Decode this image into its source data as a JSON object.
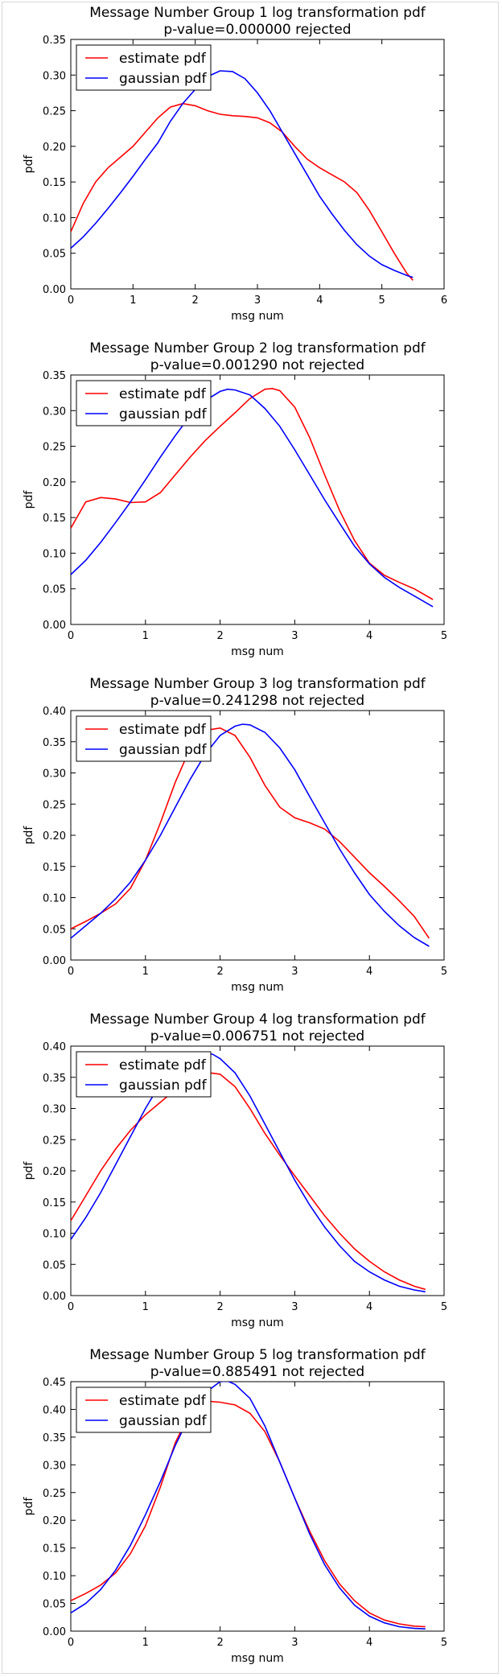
{
  "legend": {
    "estimate": "estimate pdf",
    "gaussian": "gaussian pdf"
  },
  "colors": {
    "estimate": "#ff0000",
    "gaussian": "#0000ff"
  },
  "chart_data": [
    {
      "type": "line",
      "title": "Message Number Group 1 log transformation pdf",
      "subtitle": "p-value=0.000000  rejected",
      "xlabel": "msg num",
      "ylabel": "pdf",
      "xlim": [
        0,
        6
      ],
      "ylim": [
        0,
        0.35
      ],
      "xticks": [
        "0",
        "1",
        "2",
        "3",
        "4",
        "5",
        "6"
      ],
      "yticks": [
        "0.00",
        "0.05",
        "0.10",
        "0.15",
        "0.20",
        "0.25",
        "0.30",
        "0.35"
      ],
      "grid": false,
      "legend_position": "top-left",
      "series": [
        {
          "name": "estimate pdf",
          "color": "#ff0000",
          "x": [
            0,
            0.2,
            0.4,
            0.6,
            0.8,
            1.0,
            1.2,
            1.4,
            1.6,
            1.8,
            2.0,
            2.2,
            2.4,
            2.6,
            2.8,
            3.0,
            3.2,
            3.4,
            3.6,
            3.8,
            4.0,
            4.2,
            4.4,
            4.6,
            4.8,
            5.0,
            5.2,
            5.4,
            5.5
          ],
          "y": [
            0.08,
            0.12,
            0.15,
            0.17,
            0.185,
            0.2,
            0.22,
            0.24,
            0.255,
            0.26,
            0.257,
            0.25,
            0.245,
            0.243,
            0.242,
            0.24,
            0.233,
            0.22,
            0.2,
            0.182,
            0.17,
            0.16,
            0.15,
            0.135,
            0.11,
            0.08,
            0.05,
            0.022,
            0.012
          ]
        },
        {
          "name": "gaussian pdf",
          "color": "#0000ff",
          "x": [
            0,
            0.2,
            0.4,
            0.6,
            0.8,
            1.0,
            1.2,
            1.4,
            1.6,
            1.8,
            2.0,
            2.2,
            2.4,
            2.6,
            2.8,
            3.0,
            3.2,
            3.4,
            3.6,
            3.8,
            4.0,
            4.2,
            4.4,
            4.6,
            4.8,
            5.0,
            5.2,
            5.4,
            5.5
          ],
          "y": [
            0.057,
            0.073,
            0.092,
            0.113,
            0.135,
            0.158,
            0.182,
            0.205,
            0.235,
            0.26,
            0.28,
            0.298,
            0.306,
            0.305,
            0.295,
            0.275,
            0.25,
            0.22,
            0.19,
            0.16,
            0.13,
            0.105,
            0.082,
            0.062,
            0.046,
            0.034,
            0.026,
            0.019,
            0.016
          ]
        }
      ]
    },
    {
      "type": "line",
      "title": "Message Number Group 2 log transformation pdf",
      "subtitle": "p-value=0.001290  not rejected",
      "xlabel": "msg num",
      "ylabel": "pdf",
      "xlim": [
        0,
        5
      ],
      "ylim": [
        0,
        0.35
      ],
      "xticks": [
        "0",
        "1",
        "2",
        "3",
        "4",
        "5"
      ],
      "yticks": [
        "0.00",
        "0.05",
        "0.10",
        "0.15",
        "0.20",
        "0.25",
        "0.30",
        "0.35"
      ],
      "grid": false,
      "legend_position": "top-left",
      "series": [
        {
          "name": "estimate pdf",
          "color": "#ff0000",
          "x": [
            0,
            0.2,
            0.4,
            0.6,
            0.8,
            1.0,
            1.2,
            1.4,
            1.6,
            1.8,
            2.0,
            2.2,
            2.4,
            2.6,
            2.7,
            2.8,
            3.0,
            3.2,
            3.4,
            3.6,
            3.8,
            4.0,
            4.2,
            4.4,
            4.6,
            4.85
          ],
          "y": [
            0.135,
            0.172,
            0.178,
            0.176,
            0.171,
            0.172,
            0.185,
            0.21,
            0.235,
            0.258,
            0.278,
            0.297,
            0.317,
            0.33,
            0.331,
            0.328,
            0.305,
            0.262,
            0.21,
            0.16,
            0.118,
            0.086,
            0.069,
            0.059,
            0.05,
            0.035
          ]
        },
        {
          "name": "gaussian pdf",
          "color": "#0000ff",
          "x": [
            0,
            0.2,
            0.4,
            0.6,
            0.8,
            1.0,
            1.2,
            1.4,
            1.6,
            1.8,
            2.0,
            2.1,
            2.2,
            2.4,
            2.6,
            2.8,
            3.0,
            3.2,
            3.4,
            3.6,
            3.8,
            4.0,
            4.2,
            4.4,
            4.6,
            4.85
          ],
          "y": [
            0.07,
            0.09,
            0.115,
            0.143,
            0.172,
            0.203,
            0.235,
            0.265,
            0.293,
            0.314,
            0.327,
            0.33,
            0.329,
            0.322,
            0.303,
            0.278,
            0.245,
            0.21,
            0.175,
            0.142,
            0.11,
            0.085,
            0.066,
            0.052,
            0.04,
            0.025
          ]
        }
      ]
    },
    {
      "type": "line",
      "title": "Message Number Group 3 log transformation pdf",
      "subtitle": "p-value=0.241298  not rejected",
      "xlabel": "msg num",
      "ylabel": "pdf",
      "xlim": [
        0,
        5
      ],
      "ylim": [
        0,
        0.4
      ],
      "xticks": [
        "0",
        "1",
        "2",
        "3",
        "4",
        "5"
      ],
      "yticks": [
        "0.00",
        "0.05",
        "0.10",
        "0.15",
        "0.20",
        "0.25",
        "0.30",
        "0.35",
        "0.40"
      ],
      "grid": false,
      "legend_position": "top-left",
      "series": [
        {
          "name": "estimate pdf",
          "color": "#ff0000",
          "x": [
            0,
            0.2,
            0.4,
            0.6,
            0.8,
            1.0,
            1.2,
            1.4,
            1.6,
            1.8,
            2.0,
            2.2,
            2.4,
            2.6,
            2.8,
            3.0,
            3.2,
            3.4,
            3.6,
            3.8,
            4.0,
            4.2,
            4.4,
            4.6,
            4.8
          ],
          "y": [
            0.05,
            0.062,
            0.075,
            0.09,
            0.115,
            0.16,
            0.22,
            0.285,
            0.34,
            0.368,
            0.372,
            0.36,
            0.325,
            0.28,
            0.245,
            0.228,
            0.22,
            0.21,
            0.19,
            0.165,
            0.14,
            0.118,
            0.095,
            0.07,
            0.035
          ]
        },
        {
          "name": "gaussian pdf",
          "color": "#0000ff",
          "x": [
            0,
            0.2,
            0.4,
            0.6,
            0.8,
            1.0,
            1.2,
            1.4,
            1.6,
            1.8,
            2.0,
            2.2,
            2.3,
            2.4,
            2.6,
            2.8,
            3.0,
            3.2,
            3.4,
            3.6,
            3.8,
            4.0,
            4.2,
            4.4,
            4.6,
            4.8
          ],
          "y": [
            0.035,
            0.055,
            0.075,
            0.098,
            0.125,
            0.16,
            0.2,
            0.245,
            0.29,
            0.33,
            0.36,
            0.375,
            0.378,
            0.377,
            0.365,
            0.34,
            0.305,
            0.262,
            0.22,
            0.178,
            0.14,
            0.105,
            0.078,
            0.055,
            0.036,
            0.022
          ]
        }
      ]
    },
    {
      "type": "line",
      "title": "Message Number Group 4 log transformation pdf",
      "subtitle": "p-value=0.006751  not rejected",
      "xlabel": "msg num",
      "ylabel": "pdf",
      "xlim": [
        0,
        5
      ],
      "ylim": [
        0,
        0.4
      ],
      "xticks": [
        "0",
        "1",
        "2",
        "3",
        "4",
        "5"
      ],
      "yticks": [
        "0.00",
        "0.05",
        "0.10",
        "0.15",
        "0.20",
        "0.25",
        "0.30",
        "0.35",
        "0.40"
      ],
      "grid": false,
      "legend_position": "top-left",
      "series": [
        {
          "name": "estimate pdf",
          "color": "#ff0000",
          "x": [
            0,
            0.2,
            0.4,
            0.6,
            0.8,
            1.0,
            1.2,
            1.4,
            1.6,
            1.8,
            2.0,
            2.2,
            2.4,
            2.6,
            2.8,
            3.0,
            3.2,
            3.4,
            3.6,
            3.8,
            4.0,
            4.2,
            4.4,
            4.6,
            4.75
          ],
          "y": [
            0.12,
            0.16,
            0.2,
            0.235,
            0.265,
            0.29,
            0.31,
            0.33,
            0.348,
            0.358,
            0.355,
            0.335,
            0.3,
            0.26,
            0.225,
            0.192,
            0.16,
            0.128,
            0.1,
            0.075,
            0.055,
            0.038,
            0.025,
            0.015,
            0.01
          ]
        },
        {
          "name": "gaussian pdf",
          "color": "#0000ff",
          "x": [
            0,
            0.2,
            0.4,
            0.6,
            0.8,
            1.0,
            1.2,
            1.4,
            1.6,
            1.8,
            1.9,
            2.0,
            2.2,
            2.4,
            2.6,
            2.8,
            3.0,
            3.2,
            3.4,
            3.6,
            3.8,
            4.0,
            4.2,
            4.4,
            4.6,
            4.75
          ],
          "y": [
            0.09,
            0.125,
            0.165,
            0.21,
            0.255,
            0.3,
            0.34,
            0.37,
            0.385,
            0.388,
            0.387,
            0.38,
            0.357,
            0.32,
            0.275,
            0.23,
            0.185,
            0.145,
            0.11,
            0.08,
            0.055,
            0.038,
            0.025,
            0.015,
            0.009,
            0.006
          ]
        }
      ]
    },
    {
      "type": "line",
      "title": "Message Number Group 5 log transformation pdf",
      "subtitle": "p-value=0.885491  not rejected",
      "xlabel": "msg num",
      "ylabel": "pdf",
      "xlim": [
        0,
        5
      ],
      "ylim": [
        0,
        0.45
      ],
      "xticks": [
        "0",
        "1",
        "2",
        "3",
        "4",
        "5"
      ],
      "yticks": [
        "0.00",
        "0.05",
        "0.10",
        "0.15",
        "0.20",
        "0.25",
        "0.30",
        "0.35",
        "0.40",
        "0.45"
      ],
      "grid": false,
      "legend_position": "top-left",
      "series": [
        {
          "name": "estimate pdf",
          "color": "#ff0000",
          "x": [
            0,
            0.2,
            0.4,
            0.6,
            0.8,
            1.0,
            1.2,
            1.4,
            1.6,
            1.8,
            2.0,
            2.2,
            2.4,
            2.6,
            2.8,
            3.0,
            3.2,
            3.4,
            3.6,
            3.8,
            4.0,
            4.2,
            4.4,
            4.6,
            4.75
          ],
          "y": [
            0.055,
            0.068,
            0.083,
            0.105,
            0.14,
            0.19,
            0.26,
            0.34,
            0.395,
            0.415,
            0.413,
            0.408,
            0.393,
            0.36,
            0.305,
            0.24,
            0.18,
            0.127,
            0.085,
            0.055,
            0.033,
            0.02,
            0.013,
            0.009,
            0.008
          ]
        },
        {
          "name": "gaussian pdf",
          "color": "#0000ff",
          "x": [
            0,
            0.2,
            0.4,
            0.6,
            0.8,
            1.0,
            1.2,
            1.4,
            1.6,
            1.8,
            2.0,
            2.1,
            2.2,
            2.4,
            2.6,
            2.8,
            3.0,
            3.2,
            3.4,
            3.6,
            3.8,
            4.0,
            4.2,
            4.4,
            4.6,
            4.75
          ],
          "y": [
            0.033,
            0.05,
            0.075,
            0.11,
            0.155,
            0.21,
            0.27,
            0.335,
            0.39,
            0.43,
            0.45,
            0.451,
            0.445,
            0.42,
            0.37,
            0.305,
            0.24,
            0.175,
            0.12,
            0.078,
            0.047,
            0.027,
            0.015,
            0.008,
            0.005,
            0.004
          ]
        }
      ]
    }
  ]
}
